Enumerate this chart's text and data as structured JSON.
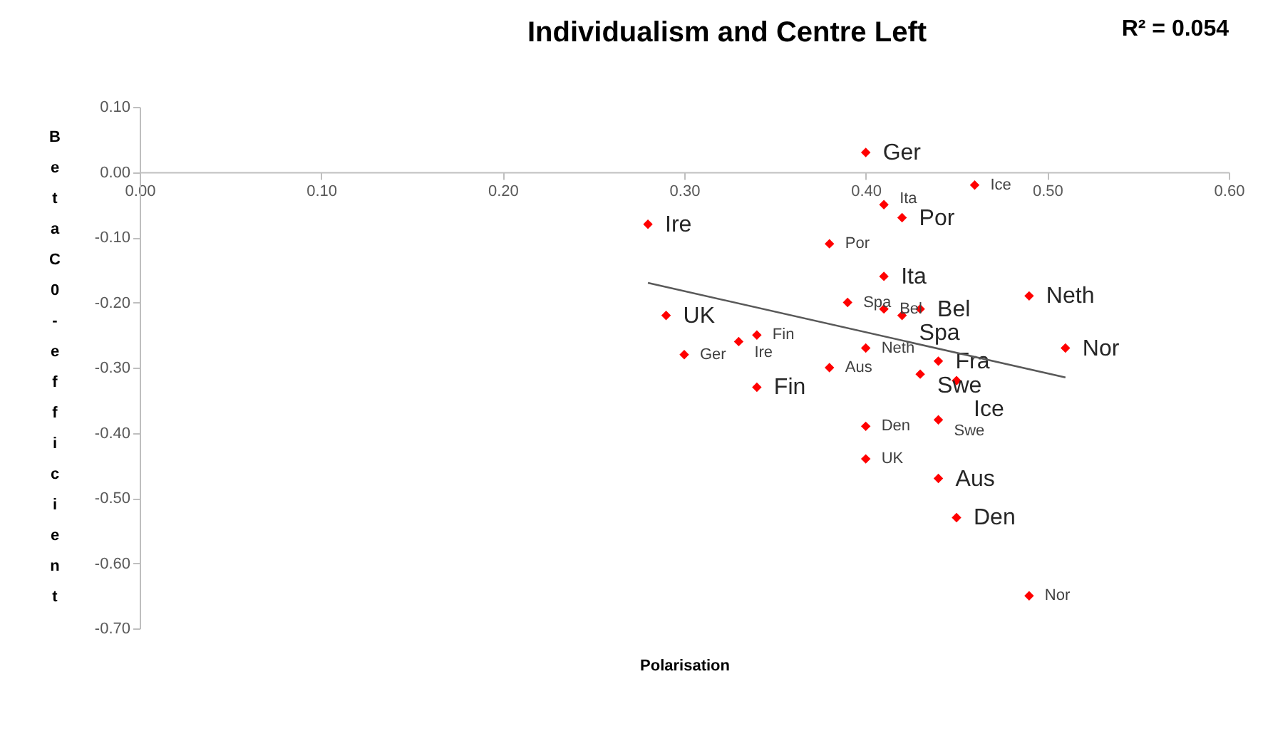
{
  "chart_data": {
    "type": "scatter",
    "title": "Individualism and Centre Left",
    "xlabel": "Polarisation",
    "ylabel": "Beta C0-efficient",
    "annotations": [
      "R² = 0.054"
    ],
    "xlim": [
      0,
      0.6
    ],
    "ylim": [
      -0.7,
      0.1
    ],
    "xticks": [
      {
        "value": 0,
        "label": "0.00"
      },
      {
        "value": 0.1,
        "label": "0.10"
      },
      {
        "value": 0.2,
        "label": "0.20"
      },
      {
        "value": 0.3,
        "label": "0.30"
      },
      {
        "value": 0.4,
        "label": "0.40"
      },
      {
        "value": 0.5,
        "label": "0.50"
      },
      {
        "value": 0.6,
        "label": "0.60"
      }
    ],
    "yticks": [
      {
        "value": 0.1,
        "label": "0.10"
      },
      {
        "value": 0,
        "label": "0.00"
      },
      {
        "value": -0.1,
        "label": "-0.10"
      },
      {
        "value": -0.2,
        "label": "-0.20"
      },
      {
        "value": -0.3,
        "label": "-0.30"
      },
      {
        "value": -0.4,
        "label": "-0.40"
      },
      {
        "value": -0.5,
        "label": "-0.50"
      },
      {
        "value": -0.6,
        "label": "-0.60"
      },
      {
        "value": -0.7,
        "label": "-0.70"
      }
    ],
    "grid": false,
    "marker": "diamond",
    "series": [
      {
        "color": "#ff0000",
        "x": [
          0.4,
          0.28,
          0.42,
          0.41,
          0.43,
          0.42,
          0.49,
          0.29,
          0.51,
          0.44,
          0.43,
          0.45,
          0.34,
          0.44,
          0.45
        ],
        "values": [
          0.03,
          -0.08,
          -0.07,
          -0.16,
          -0.21,
          -0.22,
          -0.19,
          -0.22,
          -0.27,
          -0.29,
          -0.31,
          -0.32,
          -0.33,
          -0.47,
          -0.53
        ],
        "value_labels": [
          "Ger",
          "Ire",
          "Por",
          "Ita",
          "Bel",
          "Spa",
          "Neth",
          "UK",
          "Nor",
          "Fra",
          "Swe",
          "Ice",
          "Fin",
          "Aus",
          "Den"
        ]
      },
      {
        "color": "#ff0000",
        "x": [
          0.46,
          0.41,
          0.38,
          0.39,
          0.41,
          0.4,
          0.34,
          0.33,
          0.3,
          0.38,
          0.44,
          0.4,
          0.4,
          0.49
        ],
        "values": [
          -0.02,
          -0.05,
          -0.11,
          -0.2,
          -0.21,
          -0.27,
          -0.25,
          -0.26,
          -0.28,
          -0.3,
          -0.38,
          -0.39,
          -0.44,
          -0.65
        ],
        "value_labels": [
          "Ice",
          "Ita",
          "Por",
          "Spa",
          "Bel",
          "Neth",
          "Fin",
          "Ire",
          "Ger",
          "Aus",
          "Swe",
          "Den",
          "UK",
          "Nor"
        ]
      },
      {
        "type": "line",
        "color": "#595959",
        "line_style": "solid",
        "marker": "none",
        "x": [
          0.28,
          0.51
        ],
        "values": [
          -0.17,
          -0.315
        ]
      }
    ]
  }
}
